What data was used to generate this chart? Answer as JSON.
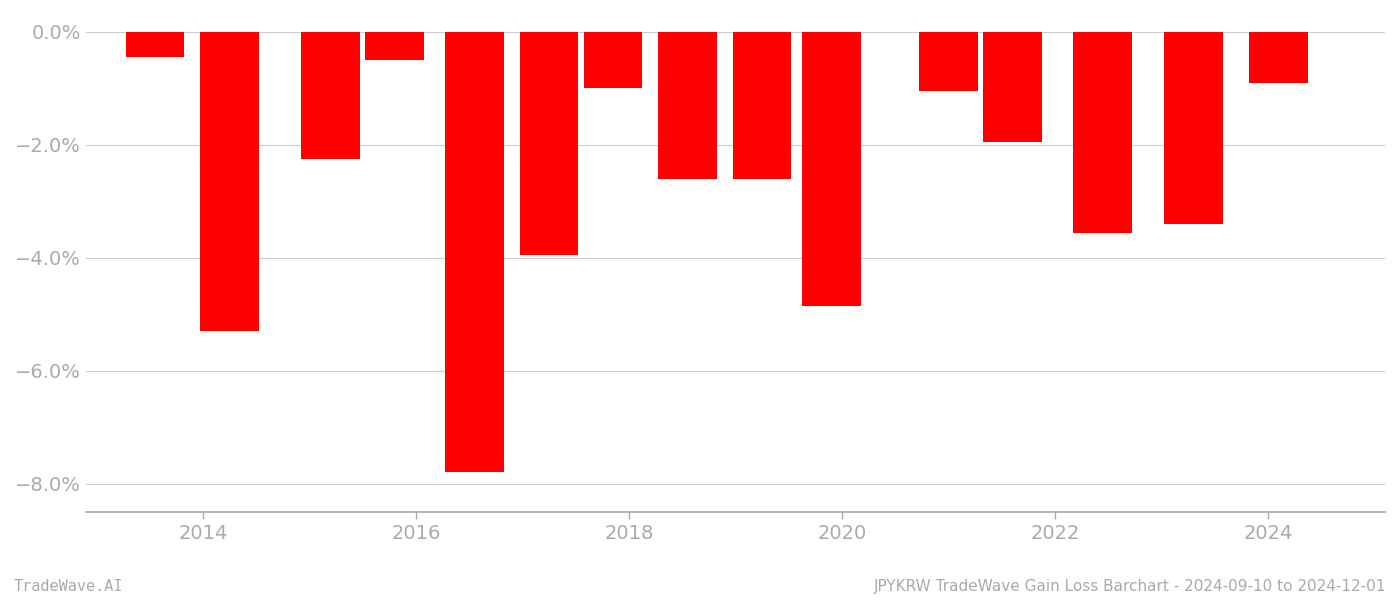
{
  "x_positions": [
    2013.55,
    2014.25,
    2015.2,
    2015.8,
    2016.55,
    2017.25,
    2017.85,
    2018.55,
    2019.25,
    2019.9,
    2021.0,
    2021.6,
    2022.45,
    2023.3,
    2024.1
  ],
  "values": [
    -0.45,
    -5.3,
    -2.25,
    -0.5,
    -7.78,
    -3.95,
    -1.0,
    -2.6,
    -2.6,
    -4.85,
    -1.05,
    -1.95,
    -3.55,
    -3.4,
    -0.9
  ],
  "bar_width": 0.55,
  "bar_color": "#ff0000",
  "background_color": "#ffffff",
  "title": "JPYKRW TradeWave Gain Loss Barchart - 2024-09-10 to 2024-12-01",
  "bottom_left_label": "TradeWave.AI",
  "ylim": [
    -8.5,
    0.3
  ],
  "yticks": [
    0.0,
    -2.0,
    -4.0,
    -6.0,
    -8.0
  ],
  "ytick_labels": [
    "0.0%",
    "−2.0%",
    "−4.0%",
    "−6.0%",
    "−8.0%"
  ],
  "xtick_positions": [
    2014,
    2016,
    2018,
    2020,
    2022,
    2024
  ],
  "xtick_labels": [
    "2014",
    "2016",
    "2018",
    "2020",
    "2022",
    "2024"
  ],
  "xlim": [
    2012.9,
    2025.1
  ],
  "grid_color": "#cccccc",
  "axis_color": "#aaaaaa",
  "tick_color": "#aaaaaa",
  "label_color": "#aaaaaa",
  "title_fontsize": 11,
  "tick_fontsize": 14,
  "label_fontsize": 11
}
